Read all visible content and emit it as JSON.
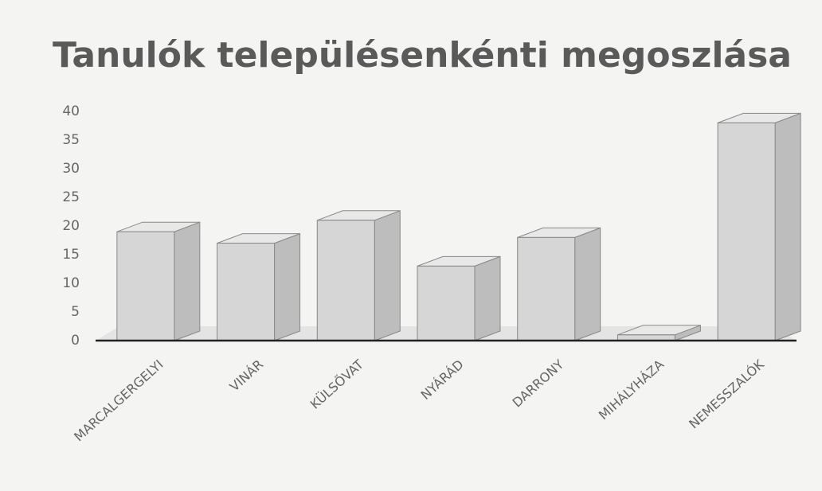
{
  "chart_data": {
    "type": "bar",
    "title": "Tanulók településenkénti megoszlása",
    "categories": [
      "MARCALGERGELYI",
      "VINÁR",
      "KÜLSŐVAT",
      "NYÁRÁD",
      "DARRONY",
      "MIHÁLYHÁZA",
      "NEMESSZALÓK"
    ],
    "values": [
      19,
      17,
      21,
      13,
      18,
      1,
      38
    ],
    "color": "#d6d6d6",
    "ylim": [
      0,
      40
    ],
    "yticks": [
      0,
      5,
      10,
      15,
      20,
      25,
      30,
      35,
      40
    ],
    "grid": false
  }
}
